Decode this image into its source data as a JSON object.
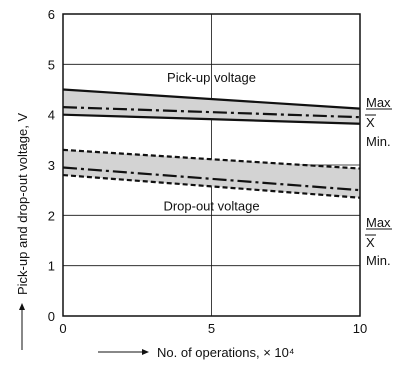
{
  "chart_data": {
    "type": "line",
    "xlabel": "No. of operations, × 10⁴",
    "ylabel": "Pick-up and drop-out voltage, V",
    "xlim": [
      0,
      10
    ],
    "ylim": [
      0,
      6
    ],
    "x_ticks": [
      "0",
      "5",
      "10"
    ],
    "y_ticks": [
      "0",
      "1",
      "2",
      "3",
      "4",
      "5",
      "6"
    ],
    "grid": true,
    "x": [
      0,
      10
    ],
    "groups": [
      {
        "label": "Pick-up voltage",
        "band_fill": "#d3d3d3",
        "series": [
          {
            "name": "Max",
            "values": [
              4.5,
              4.12
            ],
            "style": "solid"
          },
          {
            "name": "X̅",
            "values": [
              4.15,
              3.95
            ],
            "style": "dashdot"
          },
          {
            "name": "Min.",
            "values": [
              4.0,
              3.82
            ],
            "style": "solid"
          }
        ]
      },
      {
        "label": "Drop-out voltage",
        "band_fill": "#d3d3d3",
        "series": [
          {
            "name": "Max",
            "values": [
              3.3,
              2.93
            ],
            "style": "dashed"
          },
          {
            "name": "X̅",
            "values": [
              2.95,
              2.5
            ],
            "style": "dashdot"
          },
          {
            "name": "Min.",
            "values": [
              2.8,
              2.35
            ],
            "style": "dashed"
          }
        ]
      }
    ],
    "right_labels": [
      "Max",
      "X",
      "Min.",
      "Max",
      "X",
      "Min."
    ]
  }
}
